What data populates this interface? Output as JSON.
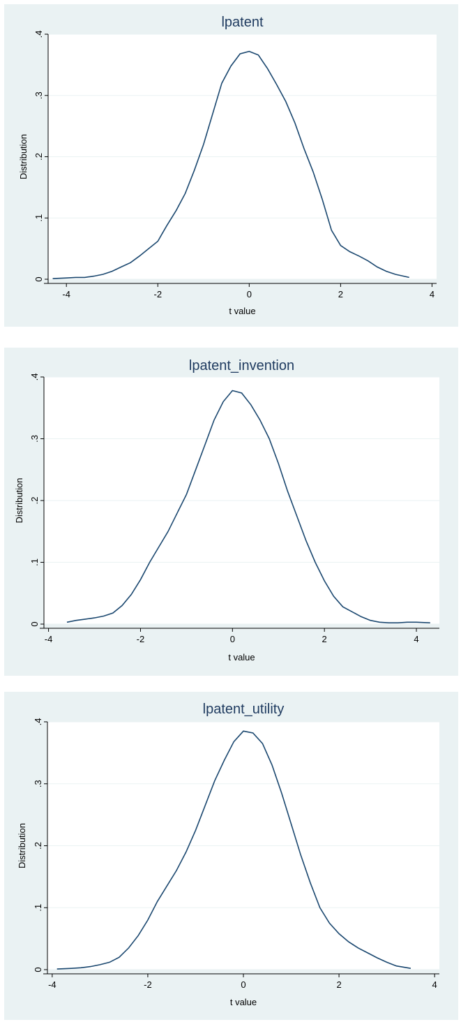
{
  "chart_data": [
    {
      "type": "line",
      "title": "lpatent",
      "xlabel": "t value",
      "ylabel": "Distribution",
      "xlim": [
        -4.4,
        4.1
      ],
      "ylim": [
        0,
        0.4
      ],
      "xticks": [
        -4,
        -2,
        0,
        2,
        4
      ],
      "yticks": [
        0,
        0.1,
        0.2,
        0.3,
        0.4
      ],
      "xtick_labels": [
        "-4",
        "-2",
        "0",
        "2",
        "4"
      ],
      "ytick_labels": [
        "0",
        ".1",
        ".2",
        ".3",
        ".4"
      ],
      "grid": true,
      "series": [
        {
          "x": [
            -4.3,
            -4.0,
            -3.8,
            -3.6,
            -3.4,
            -3.2,
            -3.0,
            -2.8,
            -2.6,
            -2.4,
            -2.2,
            -2.0,
            -1.9,
            -1.8,
            -1.6,
            -1.4,
            -1.2,
            -1.0,
            -0.8,
            -0.6,
            -0.4,
            -0.2,
            0.0,
            0.2,
            0.4,
            0.6,
            0.8,
            1.0,
            1.2,
            1.4,
            1.6,
            1.8,
            2.0,
            2.2,
            2.4,
            2.6,
            2.8,
            3.0,
            3.2,
            3.5
          ],
          "y": [
            0.001,
            0.002,
            0.003,
            0.003,
            0.005,
            0.008,
            0.013,
            0.02,
            0.027,
            0.038,
            0.05,
            0.062,
            0.075,
            0.088,
            0.112,
            0.14,
            0.178,
            0.22,
            0.27,
            0.32,
            0.348,
            0.368,
            0.372,
            0.366,
            0.344,
            0.318,
            0.29,
            0.255,
            0.213,
            0.175,
            0.13,
            0.08,
            0.055,
            0.045,
            0.038,
            0.03,
            0.02,
            0.013,
            0.008,
            0.003
          ]
        }
      ]
    },
    {
      "type": "line",
      "title": "lpatent_invention",
      "xlabel": "t value",
      "ylabel": "Distribution",
      "xlim": [
        -4.1,
        4.5
      ],
      "ylim": [
        0,
        0.4
      ],
      "xticks": [
        -4,
        -2,
        0,
        2,
        4
      ],
      "yticks": [
        0,
        0.1,
        0.2,
        0.3,
        0.4
      ],
      "xtick_labels": [
        "-4",
        "-2",
        "0",
        "2",
        "4"
      ],
      "ytick_labels": [
        "0",
        ".1",
        ".2",
        ".3",
        ".4"
      ],
      "grid": true,
      "series": [
        {
          "x": [
            -3.6,
            -3.4,
            -3.2,
            -3.0,
            -2.8,
            -2.6,
            -2.4,
            -2.2,
            -2.0,
            -1.8,
            -1.6,
            -1.4,
            -1.2,
            -1.0,
            -0.8,
            -0.6,
            -0.4,
            -0.2,
            0.0,
            0.2,
            0.4,
            0.6,
            0.8,
            1.0,
            1.2,
            1.4,
            1.6,
            1.8,
            2.0,
            2.2,
            2.4,
            2.6,
            2.8,
            3.0,
            3.2,
            3.4,
            3.6,
            3.8,
            4.0,
            4.3
          ],
          "y": [
            0.003,
            0.006,
            0.008,
            0.01,
            0.013,
            0.018,
            0.03,
            0.048,
            0.072,
            0.1,
            0.125,
            0.15,
            0.18,
            0.21,
            0.25,
            0.29,
            0.33,
            0.36,
            0.378,
            0.374,
            0.355,
            0.33,
            0.3,
            0.26,
            0.215,
            0.175,
            0.135,
            0.1,
            0.07,
            0.045,
            0.028,
            0.02,
            0.012,
            0.006,
            0.003,
            0.002,
            0.002,
            0.003,
            0.003,
            0.002
          ]
        }
      ]
    },
    {
      "type": "line",
      "title": "lpatent_utility",
      "xlabel": "t value",
      "ylabel": "Distribution",
      "xlim": [
        -4.1,
        4.1
      ],
      "ylim": [
        0,
        0.4
      ],
      "xticks": [
        -4,
        -2,
        0,
        2,
        4
      ],
      "yticks": [
        0,
        0.1,
        0.2,
        0.3,
        0.4
      ],
      "xtick_labels": [
        "-4",
        "-2",
        "0",
        "2",
        "4"
      ],
      "ytick_labels": [
        "0",
        ".1",
        ".2",
        ".3",
        ".4"
      ],
      "grid": true,
      "series": [
        {
          "x": [
            -3.9,
            -3.6,
            -3.4,
            -3.2,
            -3.0,
            -2.8,
            -2.6,
            -2.4,
            -2.2,
            -2.0,
            -1.8,
            -1.6,
            -1.4,
            -1.2,
            -1.0,
            -0.8,
            -0.6,
            -0.4,
            -0.2,
            0.0,
            0.2,
            0.4,
            0.6,
            0.8,
            1.0,
            1.2,
            1.4,
            1.6,
            1.8,
            2.0,
            2.2,
            2.4,
            2.6,
            2.8,
            3.0,
            3.2,
            3.5
          ],
          "y": [
            0.001,
            0.002,
            0.003,
            0.005,
            0.008,
            0.012,
            0.02,
            0.035,
            0.055,
            0.08,
            0.11,
            0.135,
            0.16,
            0.19,
            0.225,
            0.265,
            0.305,
            0.338,
            0.368,
            0.385,
            0.382,
            0.365,
            0.33,
            0.285,
            0.235,
            0.185,
            0.14,
            0.1,
            0.075,
            0.058,
            0.045,
            0.035,
            0.027,
            0.019,
            0.012,
            0.006,
            0.002
          ]
        }
      ]
    }
  ]
}
